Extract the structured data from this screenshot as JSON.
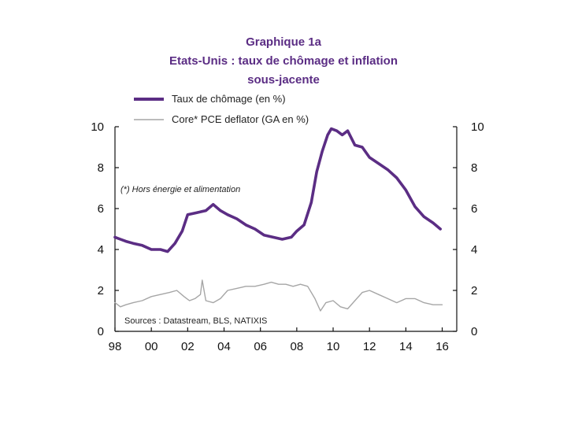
{
  "chart_data": {
    "type": "line",
    "title": [
      "Graphique 1a",
      "Etats-Unis : taux de chômage et inflation",
      "sous-jacente"
    ],
    "note": "(*) Hors énergie et alimentation",
    "source": "Sources : Datastream, BLS, NATIXIS",
    "x_ticks": [
      "98",
      "00",
      "02",
      "04",
      "06",
      "08",
      "10",
      "12",
      "14",
      "16"
    ],
    "xlim": [
      1998,
      2016.8
    ],
    "ylim_left": [
      0,
      10
    ],
    "ylim_right": [
      0,
      10
    ],
    "y_ticks_left": [
      "0",
      "2",
      "4",
      "6",
      "8",
      "10"
    ],
    "y_ticks_right": [
      "0",
      "2",
      "4",
      "6",
      "8",
      "10"
    ],
    "legend_position": "top-left",
    "grid": false,
    "series": [
      {
        "name": "Taux de chômage (en %)",
        "color": "#5b2d84",
        "x": [
          1998.0,
          1998.3,
          1998.6,
          1999.0,
          1999.5,
          2000.0,
          2000.5,
          2000.9,
          2001.3,
          2001.7,
          2002.0,
          2002.5,
          2003.0,
          2003.4,
          2003.8,
          2004.2,
          2004.7,
          2005.2,
          2005.7,
          2006.2,
          2006.7,
          2007.2,
          2007.7,
          2008.0,
          2008.4,
          2008.8,
          2009.1,
          2009.4,
          2009.7,
          2009.9,
          2010.2,
          2010.5,
          2010.8,
          2011.2,
          2011.6,
          2012.0,
          2012.5,
          2013.0,
          2013.5,
          2014.0,
          2014.5,
          2015.0,
          2015.5,
          2015.9
        ],
        "values": [
          4.6,
          4.5,
          4.4,
          4.3,
          4.2,
          4.0,
          4.0,
          3.9,
          4.3,
          4.9,
          5.7,
          5.8,
          5.9,
          6.2,
          5.9,
          5.7,
          5.5,
          5.2,
          5.0,
          4.7,
          4.6,
          4.5,
          4.6,
          4.9,
          5.2,
          6.3,
          7.8,
          8.8,
          9.6,
          9.9,
          9.8,
          9.6,
          9.8,
          9.1,
          9.0,
          8.5,
          8.2,
          7.9,
          7.5,
          6.9,
          6.1,
          5.6,
          5.3,
          5.0
        ]
      },
      {
        "name": "Core* PCE deflator (GA en %)",
        "color": "#a6a6a6",
        "x": [
          1998.0,
          1998.3,
          1998.6,
          1999.0,
          1999.5,
          2000.0,
          2000.5,
          2001.0,
          2001.4,
          2001.8,
          2002.1,
          2002.4,
          2002.7,
          2002.8,
          2003.0,
          2003.4,
          2003.8,
          2004.2,
          2004.7,
          2005.2,
          2005.7,
          2006.2,
          2006.6,
          2007.0,
          2007.4,
          2007.8,
          2008.2,
          2008.6,
          2009.0,
          2009.3,
          2009.6,
          2010.0,
          2010.4,
          2010.8,
          2011.2,
          2011.6,
          2012.0,
          2012.5,
          2013.0,
          2013.5,
          2014.0,
          2014.5,
          2015.0,
          2015.5,
          2016.0
        ],
        "values": [
          1.4,
          1.2,
          1.3,
          1.4,
          1.5,
          1.7,
          1.8,
          1.9,
          2.0,
          1.7,
          1.5,
          1.6,
          1.8,
          2.5,
          1.5,
          1.4,
          1.6,
          2.0,
          2.1,
          2.2,
          2.2,
          2.3,
          2.4,
          2.3,
          2.3,
          2.2,
          2.3,
          2.2,
          1.6,
          1.0,
          1.4,
          1.5,
          1.2,
          1.1,
          1.5,
          1.9,
          2.0,
          1.8,
          1.6,
          1.4,
          1.6,
          1.6,
          1.4,
          1.3,
          1.3
        ]
      }
    ]
  }
}
